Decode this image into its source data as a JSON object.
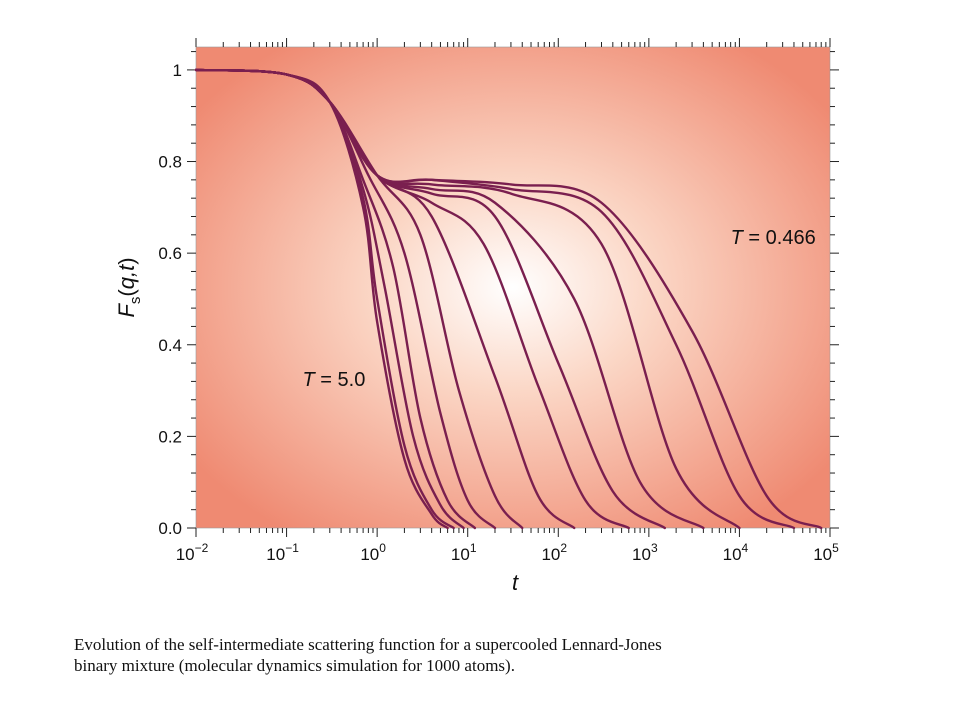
{
  "chart_data": {
    "type": "line",
    "xscale": "log",
    "xlim": [
      0.01,
      100000
    ],
    "ylim": [
      0.0,
      1.05
    ],
    "xlabel": "t",
    "ylabel": "Fs(q,t)",
    "yticks": [
      "0.0",
      "0.2",
      "0.4",
      "0.6",
      "0.8",
      "1"
    ],
    "xticks": [
      {
        "base": "10",
        "exp": "−2"
      },
      {
        "base": "10",
        "exp": "−1"
      },
      {
        "base": "10",
        "exp": "0"
      },
      {
        "base": "10",
        "exp": "1"
      },
      {
        "base": "10",
        "exp": "2"
      },
      {
        "base": "10",
        "exp": "3"
      },
      {
        "base": "10",
        "exp": "4"
      },
      {
        "base": "10",
        "exp": "5"
      }
    ],
    "grid": false,
    "line_color": "#7a1f4f",
    "annotations": [
      {
        "text": "T = 5.0",
        "x": 0.15,
        "y": 0.31
      },
      {
        "text": "T = 0.466",
        "x": 8000,
        "y": 0.62
      }
    ],
    "series": [
      {
        "x": [
          0.01,
          0.1,
          0.3,
          0.7,
          1.0,
          2.0,
          4.0,
          6.0
        ],
        "y": [
          1.0,
          0.99,
          0.93,
          0.7,
          0.45,
          0.15,
          0.03,
          0.0
        ]
      },
      {
        "x": [
          0.01,
          0.1,
          0.3,
          0.7,
          1.0,
          2.0,
          4.0,
          7.0
        ],
        "y": [
          1.0,
          0.99,
          0.93,
          0.72,
          0.5,
          0.18,
          0.04,
          0.0
        ]
      },
      {
        "x": [
          0.01,
          0.1,
          0.3,
          0.7,
          1.2,
          2.5,
          5.0,
          9.0
        ],
        "y": [
          1.0,
          0.99,
          0.93,
          0.74,
          0.53,
          0.2,
          0.05,
          0.0
        ]
      },
      {
        "x": [
          0.01,
          0.1,
          0.3,
          0.7,
          1.5,
          3.0,
          6.0,
          12.0
        ],
        "y": [
          1.0,
          0.99,
          0.93,
          0.76,
          0.57,
          0.24,
          0.06,
          0.0
        ]
      },
      {
        "x": [
          0.01,
          0.1,
          0.3,
          0.8,
          2.0,
          5.0,
          10.0,
          20.0
        ],
        "y": [
          1.0,
          0.99,
          0.93,
          0.77,
          0.6,
          0.25,
          0.06,
          0.0
        ]
      },
      {
        "x": [
          0.01,
          0.1,
          0.3,
          1.0,
          3.0,
          8.0,
          20.0,
          40.0
        ],
        "y": [
          1.0,
          0.99,
          0.93,
          0.77,
          0.64,
          0.3,
          0.07,
          0.0
        ]
      },
      {
        "x": [
          0.01,
          0.1,
          0.3,
          1.0,
          4.0,
          20.0,
          60.0,
          150.0
        ],
        "y": [
          1.0,
          0.99,
          0.93,
          0.77,
          0.68,
          0.33,
          0.07,
          0.0
        ]
      },
      {
        "x": [
          0.01,
          0.1,
          0.3,
          1.0,
          4.0,
          15.0,
          60.0,
          200.0,
          600.0
        ],
        "y": [
          1.0,
          0.99,
          0.93,
          0.77,
          0.71,
          0.62,
          0.31,
          0.06,
          0.0
        ]
      },
      {
        "x": [
          0.01,
          0.1,
          0.3,
          1.0,
          4.0,
          20.0,
          100.0,
          400.0,
          1500.0
        ],
        "y": [
          1.0,
          0.99,
          0.93,
          0.77,
          0.73,
          0.68,
          0.36,
          0.08,
          0.0
        ]
      },
      {
        "x": [
          0.01,
          0.1,
          0.3,
          1.0,
          4.0,
          20.0,
          150.0,
          800.0,
          4000.0
        ],
        "y": [
          1.0,
          0.99,
          0.93,
          0.77,
          0.74,
          0.71,
          0.5,
          0.1,
          0.0
        ]
      },
      {
        "x": [
          0.01,
          0.1,
          0.3,
          1.0,
          4.0,
          30.0,
          300.0,
          2000.0,
          10000.0
        ],
        "y": [
          1.0,
          0.99,
          0.93,
          0.77,
          0.75,
          0.73,
          0.62,
          0.13,
          0.0
        ]
      },
      {
        "x": [
          0.01,
          0.1,
          0.3,
          1.0,
          4.0,
          30.0,
          300.0,
          2000.0,
          10000.0,
          40000.0
        ],
        "y": [
          1.0,
          0.99,
          0.93,
          0.77,
          0.76,
          0.74,
          0.69,
          0.4,
          0.07,
          0.0
        ]
      },
      {
        "x": [
          0.01,
          0.1,
          0.3,
          1.0,
          4.0,
          30.0,
          300.0,
          3000.0,
          20000.0,
          80000.0
        ],
        "y": [
          1.0,
          0.99,
          0.93,
          0.77,
          0.76,
          0.75,
          0.71,
          0.43,
          0.07,
          0.0
        ]
      }
    ]
  },
  "caption": {
    "line1": "Evolution of the self-intermediate  scattering function for a supercooled Lennard-Jones",
    "line2": "binary mixture (molecular dynamics simulation for 1000 atoms)."
  }
}
